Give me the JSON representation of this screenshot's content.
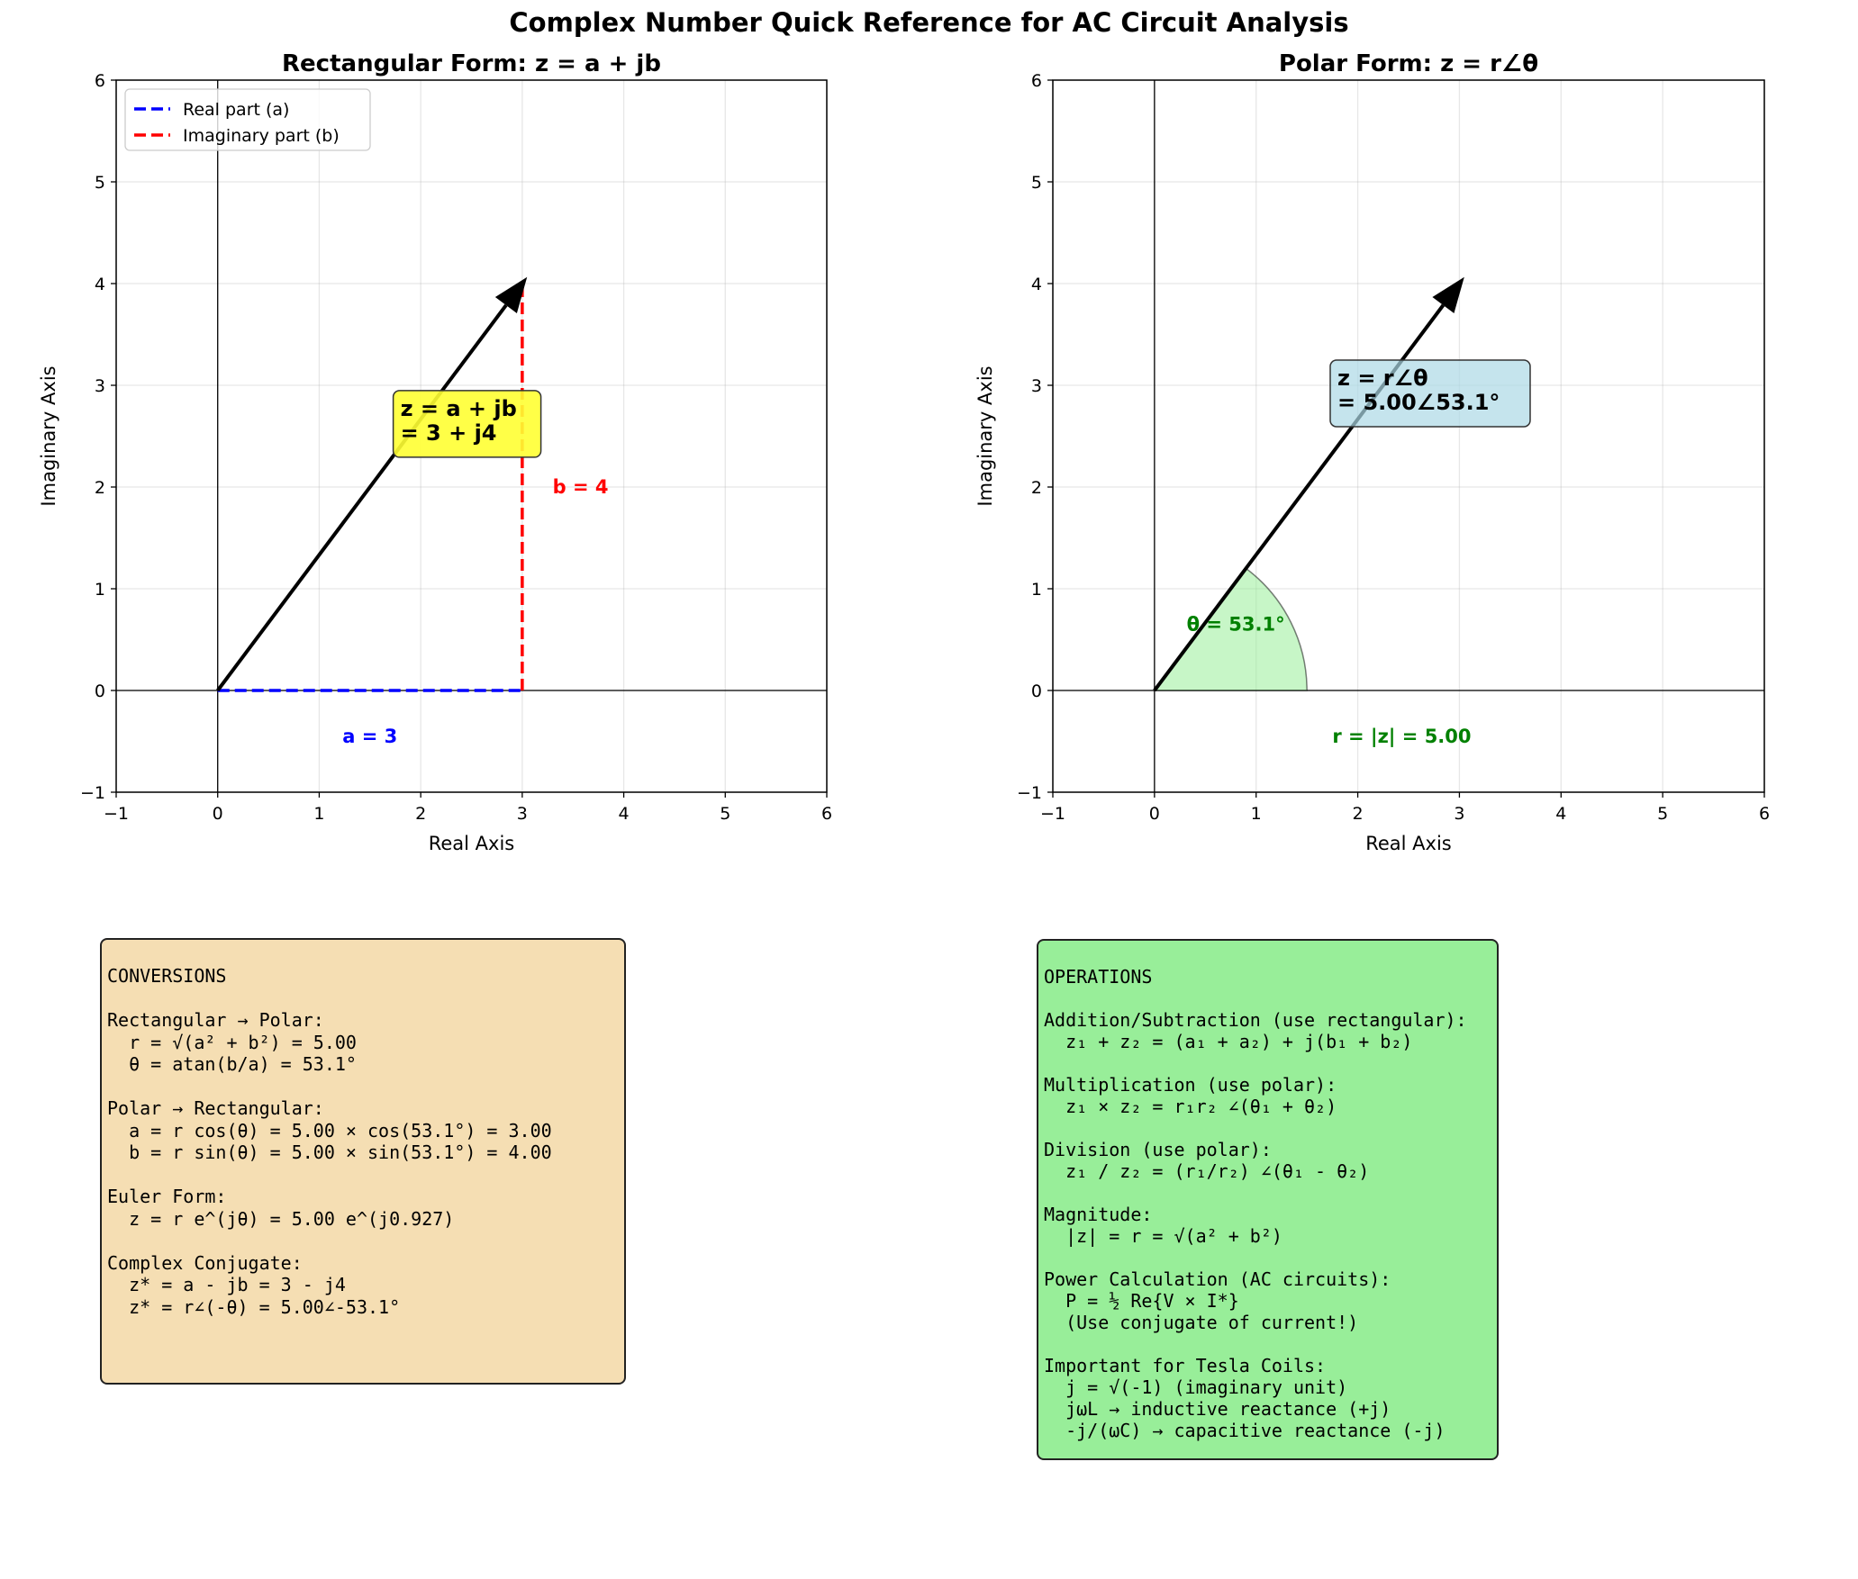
{
  "suptitle": "Complex Number Quick Reference for AC Circuit Analysis",
  "chart_data": [
    {
      "type": "line",
      "title": "Rectangular Form: z = a + jb",
      "xlabel": "Real Axis",
      "ylabel": "Imaginary Axis",
      "xlim": [
        -1,
        6
      ],
      "ylim": [
        -1,
        6
      ],
      "xticks": [
        "−1",
        "0",
        "1",
        "2",
        "3",
        "4",
        "5",
        "6"
      ],
      "yticks": [
        "−1",
        "0",
        "1",
        "2",
        "3",
        "4",
        "5",
        "6"
      ],
      "grid": true,
      "legend_placement": "top-left",
      "vector": {
        "from": [
          0,
          0
        ],
        "to": [
          3,
          4
        ],
        "color": "#000000"
      },
      "series": [
        {
          "name": "Real part (a)",
          "x": [
            0,
            3
          ],
          "y": [
            0,
            0
          ],
          "color": "#0000ff",
          "style": "dashed"
        },
        {
          "name": "Imaginary part (b)",
          "x": [
            3,
            3
          ],
          "y": [
            0,
            4
          ],
          "color": "#ff0000",
          "style": "dashed"
        }
      ],
      "annotations": [
        {
          "text": "a = 3",
          "x": 1.5,
          "y": -0.45,
          "color": "#0000ff"
        },
        {
          "text": "b = 4",
          "x": 3.3,
          "y": 2.0,
          "color": "#ff0000"
        },
        {
          "lines": [
            "z = a + jb",
            "= 3 + j4"
          ],
          "x": 1.8,
          "y": 2.7,
          "box_color": "#ffff33"
        }
      ]
    },
    {
      "type": "line",
      "title": "Polar Form: z = r∠θ",
      "xlabel": "Real Axis",
      "ylabel": "Imaginary Axis",
      "xlim": [
        -1,
        6
      ],
      "ylim": [
        -1,
        6
      ],
      "xticks": [
        "−1",
        "0",
        "1",
        "2",
        "3",
        "4",
        "5",
        "6"
      ],
      "yticks": [
        "−1",
        "0",
        "1",
        "2",
        "3",
        "4",
        "5",
        "6"
      ],
      "grid": true,
      "vector": {
        "from": [
          0,
          0
        ],
        "to": [
          3,
          4
        ],
        "color": "#000000"
      },
      "angle_wedge": {
        "radius": 1.5,
        "theta_deg": 53.1,
        "fill": "#90ee90"
      },
      "annotations": [
        {
          "text": "θ = 53.1°",
          "x": 0.8,
          "y": 0.65,
          "color": "#008000"
        },
        {
          "text": "r = |z| = 5.00",
          "x": 1.75,
          "y": -0.45,
          "color": "#008000"
        },
        {
          "lines": [
            "z = r∠θ",
            "= 5.00∠53.1°"
          ],
          "x": 1.8,
          "y": 3.0,
          "box_color": "#add8e6"
        }
      ]
    }
  ],
  "conversions": [
    "CONVERSIONS",
    "",
    "Rectangular → Polar:",
    "  r = √(a² + b²) = 5.00",
    "  θ = atan(b/a) = 53.1°",
    "",
    "Polar → Rectangular:",
    "  a = r cos(θ) = 5.00 × cos(53.1°) = 3.00",
    "  b = r sin(θ) = 5.00 × sin(53.1°) = 4.00",
    "",
    "Euler Form:",
    "  z = r e^(jθ) = 5.00 e^(j0.927)",
    "",
    "Complex Conjugate:",
    "  z* = a - jb = 3 - j4",
    "  z* = r∠(-θ) = 5.00∠-53.1°"
  ],
  "operations": [
    "OPERATIONS",
    "",
    "Addition/Subtraction (use rectangular):",
    "  z₁ + z₂ = (a₁ + a₂) + j(b₁ + b₂)",
    "",
    "Multiplication (use polar):",
    "  z₁ × z₂ = r₁r₂ ∠(θ₁ + θ₂)",
    "",
    "Division (use polar):",
    "  z₁ / z₂ = (r₁/r₂) ∠(θ₁ - θ₂)",
    "",
    "Magnitude:",
    "  |z| = r = √(a² + b²)",
    "",
    "Power Calculation (AC circuits):",
    "  P = ½ Re{V × I*}",
    "  (Use conjugate of current!)",
    "",
    "Important for Tesla Coils:",
    "  j = √(-1) (imaginary unit)",
    "  jωL → inductive reactance (+j)",
    "  -j/(ωC) → capacitive reactance (-j)"
  ]
}
